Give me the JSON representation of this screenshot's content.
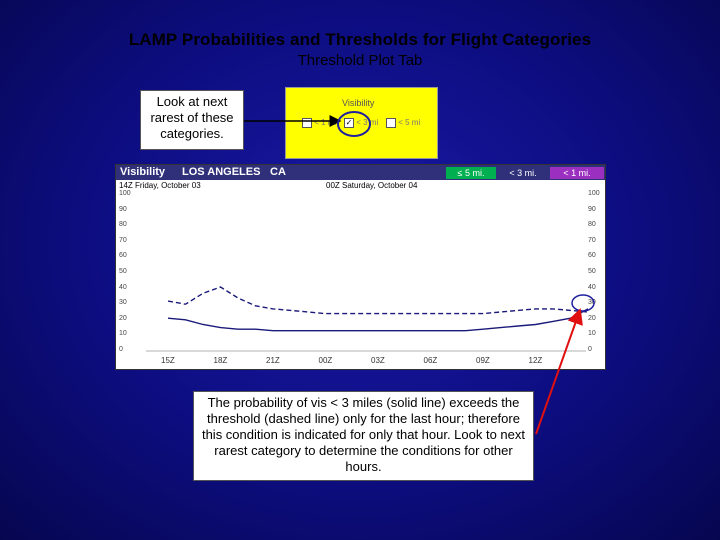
{
  "slide": {
    "title": "LAMP Probabilities and Thresholds for Flight Categories",
    "subtitle": "Threshold Plot Tab"
  },
  "callouts": {
    "top_left": "Look at next rarest of these categories.",
    "bottom": "The probability of vis < 3 miles (solid line) exceeds the threshold (dashed line) only for the last hour; therefore this condition is indicated for only that hour. Look to next rarest category to determine the conditions for other hours."
  },
  "visibility_selector": {
    "title": "Visibility",
    "options": [
      "< 1 mi",
      "< 3 mi",
      "< 5 mi"
    ],
    "checked": "< 3 mi"
  },
  "plot": {
    "header": {
      "element": "Visibility",
      "station": "LOS ANGELES",
      "state": "CA"
    },
    "legend": [
      {
        "label": "≤ 5 mi.",
        "color": "#00b050"
      },
      {
        "label": "< 3 mi.",
        "color": "#30307a"
      },
      {
        "label": "< 1 mi.",
        "color": "#9b30c0"
      }
    ],
    "date_left": "14Z Friday, October 03",
    "date_mid": "00Z Saturday, October 04",
    "y_ticks_left": [
      "100",
      "90",
      "80",
      "70",
      "60",
      "50",
      "40",
      "30",
      "20",
      "10",
      "0"
    ],
    "y_ticks_right": [
      "100",
      "90",
      "80",
      "70",
      "60",
      "50",
      "40",
      "30",
      "20",
      "10",
      "0"
    ],
    "x_ticks": [
      "15Z",
      "18Z",
      "21Z",
      "00Z",
      "03Z",
      "06Z",
      "09Z",
      "12Z"
    ]
  },
  "chart_data": {
    "type": "line",
    "x": [
      15,
      16,
      17,
      18,
      19,
      20,
      21,
      22,
      23,
      24,
      25,
      26,
      27,
      28,
      29,
      30,
      31,
      32,
      33,
      34,
      35,
      36,
      37,
      38,
      39
    ],
    "series": [
      {
        "name": "solid",
        "values": [
          21,
          20,
          17,
          15,
          14,
          14,
          13,
          13,
          13,
          13,
          13,
          13,
          13,
          13,
          13,
          13,
          13,
          13,
          14,
          15,
          16,
          17,
          19,
          21,
          27
        ]
      },
      {
        "name": "dashed",
        "values": [
          32,
          30,
          37,
          41,
          34,
          29,
          27,
          26,
          25,
          24,
          24,
          24,
          24,
          24,
          24,
          24,
          24,
          24,
          24,
          25,
          26,
          27,
          27,
          26,
          25
        ]
      }
    ],
    "ylim": [
      0,
      100
    ],
    "xlim": [
      15,
      39
    ]
  }
}
